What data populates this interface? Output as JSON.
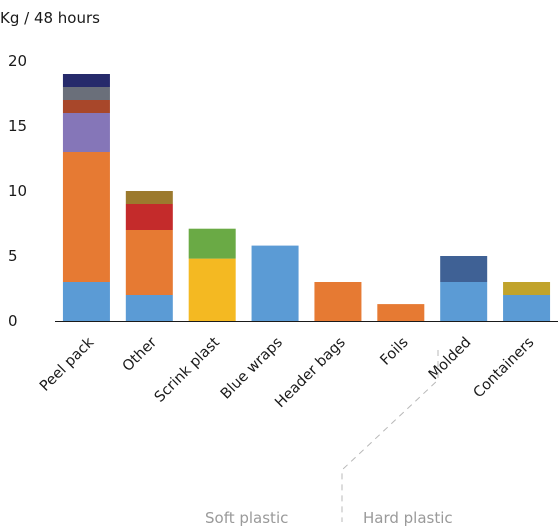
{
  "chart_data": {
    "type": "bar",
    "stacked": true,
    "unit_label": "Kg / 48 hours",
    "ylim": [
      0,
      20
    ],
    "yticks": [
      0,
      5,
      10,
      15,
      20
    ],
    "categories": [
      "Peel pack",
      "Other",
      "Scrink plast",
      "Blue wraps",
      "Header bags",
      "Foils",
      "Molded",
      "Containers"
    ],
    "stacks": [
      [
        {
          "value": 3,
          "color": "#5b9bd5"
        },
        {
          "value": 10,
          "color": "#e67a33"
        },
        {
          "value": 3,
          "color": "#8576b8"
        },
        {
          "value": 1,
          "color": "#a8472a"
        },
        {
          "value": 1,
          "color": "#6a6f7a"
        },
        {
          "value": 1,
          "color": "#262a6b"
        }
      ],
      [
        {
          "value": 2,
          "color": "#5b9bd5"
        },
        {
          "value": 5,
          "color": "#e67a33"
        },
        {
          "value": 2,
          "color": "#c42b2b"
        },
        {
          "value": 1,
          "color": "#9c7a2e"
        }
      ],
      [
        {
          "value": 4.8,
          "color": "#f4b922"
        },
        {
          "value": 2.3,
          "color": "#6aaa45"
        }
      ],
      [
        {
          "value": 5.8,
          "color": "#5b9bd5"
        }
      ],
      [
        {
          "value": 3,
          "color": "#e67a33"
        }
      ],
      [
        {
          "value": 1.3,
          "color": "#e67a33"
        }
      ],
      [
        {
          "value": 3,
          "color": "#5b9bd5"
        },
        {
          "value": 2,
          "color": "#3f6195"
        }
      ],
      [
        {
          "value": 2,
          "color": "#5b9bd5"
        },
        {
          "value": 1,
          "color": "#c1a32b"
        }
      ]
    ],
    "groups": [
      {
        "label": "Soft plastic"
      },
      {
        "label": "Hard plastic"
      }
    ],
    "grid": false
  }
}
